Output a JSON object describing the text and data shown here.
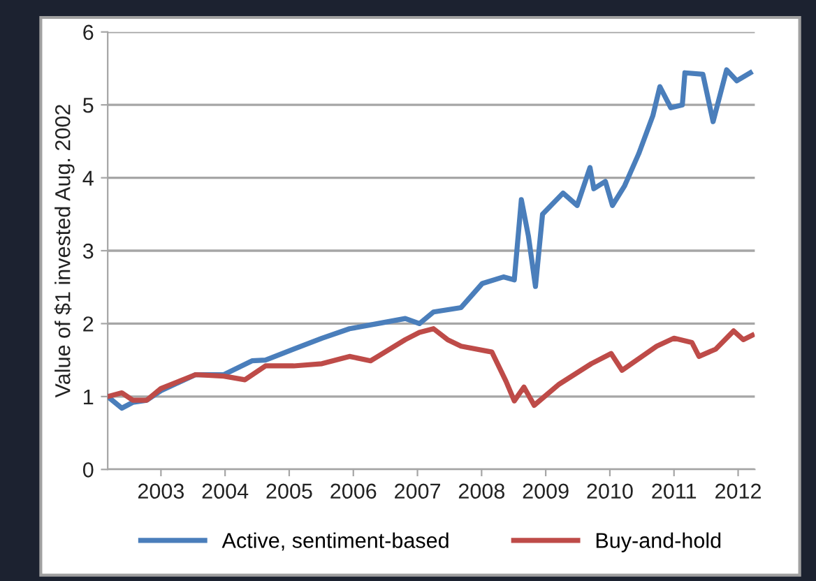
{
  "chart_data": {
    "type": "line",
    "ylabel": "Value of $1 invested Aug. 2002",
    "xlim": [
      2002.17,
      2012.26
    ],
    "xticks": [
      2003,
      2004,
      2005,
      2006,
      2007,
      2008,
      2009,
      2010,
      2011,
      2012
    ],
    "ylim": [
      0,
      6
    ],
    "yticks": [
      0,
      1,
      2,
      3,
      4,
      5,
      6
    ],
    "grid": "y",
    "legend": "bottom",
    "marker": "none",
    "line_style": "solid",
    "series": [
      {
        "name": "Active, sentiment-based",
        "color": "#4a7ebb",
        "x": [
          2002.17,
          2002.39,
          2002.56,
          2002.78,
          2003.0,
          2003.54,
          2003.98,
          2004.42,
          2004.63,
          2005.07,
          2005.51,
          2005.94,
          2006.38,
          2006.81,
          2007.03,
          2007.25,
          2007.68,
          2008.01,
          2008.34,
          2008.51,
          2008.62,
          2008.73,
          2008.84,
          2008.95,
          2009.27,
          2009.49,
          2009.69,
          2009.75,
          2009.93,
          2010.04,
          2010.23,
          2010.45,
          2010.67,
          2010.78,
          2010.95,
          2011.13,
          2011.17,
          2011.45,
          2011.61,
          2011.82,
          2011.98,
          2012.19
        ],
        "values": [
          1.0,
          0.84,
          0.92,
          0.95,
          1.08,
          1.3,
          1.3,
          1.49,
          1.5,
          1.65,
          1.8,
          1.93,
          2.0,
          2.07,
          2.0,
          2.16,
          2.22,
          2.55,
          2.64,
          2.6,
          3.7,
          3.2,
          2.51,
          3.5,
          3.79,
          3.62,
          4.14,
          3.85,
          3.95,
          3.62,
          3.89,
          4.33,
          4.85,
          5.25,
          4.96,
          5.0,
          5.44,
          5.42,
          4.77,
          5.48,
          5.33,
          5.44
        ]
      },
      {
        "name": "Buy-and-hold",
        "color": "#be4b48",
        "x": [
          2002.17,
          2002.39,
          2002.56,
          2002.78,
          2003.0,
          2003.54,
          2003.98,
          2004.31,
          2004.63,
          2005.07,
          2005.51,
          2005.94,
          2006.27,
          2006.81,
          2007.03,
          2007.25,
          2007.47,
          2007.68,
          2008.16,
          2008.38,
          2008.51,
          2008.66,
          2008.82,
          2009.21,
          2009.71,
          2010.02,
          2010.19,
          2010.73,
          2011.0,
          2011.28,
          2011.39,
          2011.65,
          2011.93,
          2012.08,
          2012.22
        ],
        "values": [
          1.0,
          1.05,
          0.95,
          0.95,
          1.11,
          1.3,
          1.28,
          1.23,
          1.42,
          1.42,
          1.45,
          1.55,
          1.49,
          1.78,
          1.88,
          1.93,
          1.78,
          1.69,
          1.61,
          1.21,
          0.94,
          1.13,
          0.88,
          1.17,
          1.45,
          1.59,
          1.36,
          1.69,
          1.8,
          1.74,
          1.55,
          1.65,
          1.9,
          1.78,
          1.84
        ]
      }
    ]
  }
}
